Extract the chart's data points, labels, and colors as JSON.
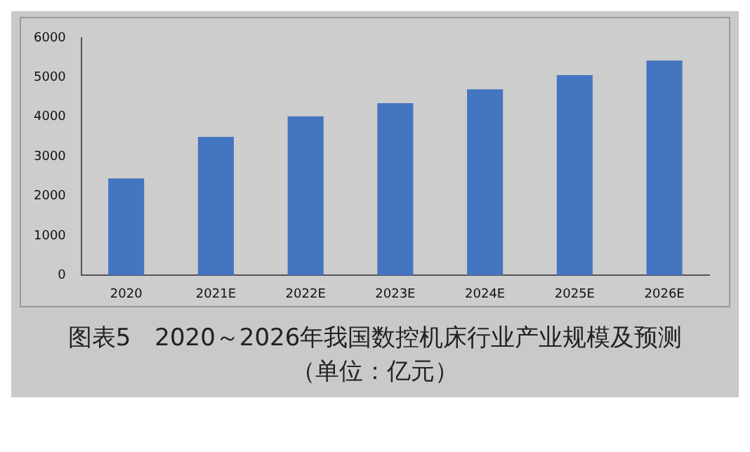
{
  "chart_data": {
    "type": "bar",
    "title": "图表5　2020～2026年我国数控机床行业产业规模及预测（单位：亿元）",
    "categories": [
      "2020",
      "2021E",
      "2022E",
      "2023E",
      "2024E",
      "2025E",
      "2026E"
    ],
    "values": [
      2450,
      3500,
      4020,
      4350,
      4700,
      5060,
      5430
    ],
    "color": "#4475c0",
    "ylim": [
      0,
      6000
    ],
    "yticks": [
      0,
      1000,
      2000,
      3000,
      4000,
      5000,
      6000
    ],
    "grid": false,
    "legend": false
  }
}
